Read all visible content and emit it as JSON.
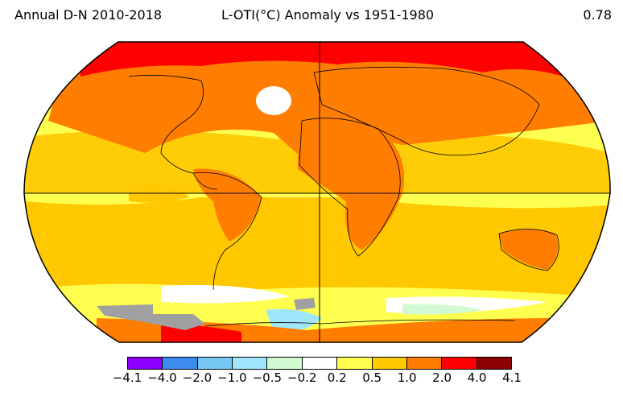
{
  "header": {
    "left": "Annual D-N 2010-2018",
    "center": "L-OTI(°C) Anomaly vs 1951-1980",
    "right": "0.78"
  },
  "legend": {
    "ticks": [
      "−4.1",
      "−4.0",
      "−2.0",
      "−1.0",
      "−0.5",
      "−0.2",
      "0.2",
      "0.5",
      "1.0",
      "2.0",
      "4.0",
      "4.1"
    ],
    "colors": [
      "#8b00ff",
      "#3c8cf0",
      "#78c8f5",
      "#a0e6fa",
      "#d2fad2",
      "#ffffff",
      "#ffff50",
      "#ffc800",
      "#ff7d00",
      "#ff0000",
      "#8b0000"
    ]
  },
  "map": {
    "projection": "robinson",
    "missing_color": "#a0a0a0"
  }
}
